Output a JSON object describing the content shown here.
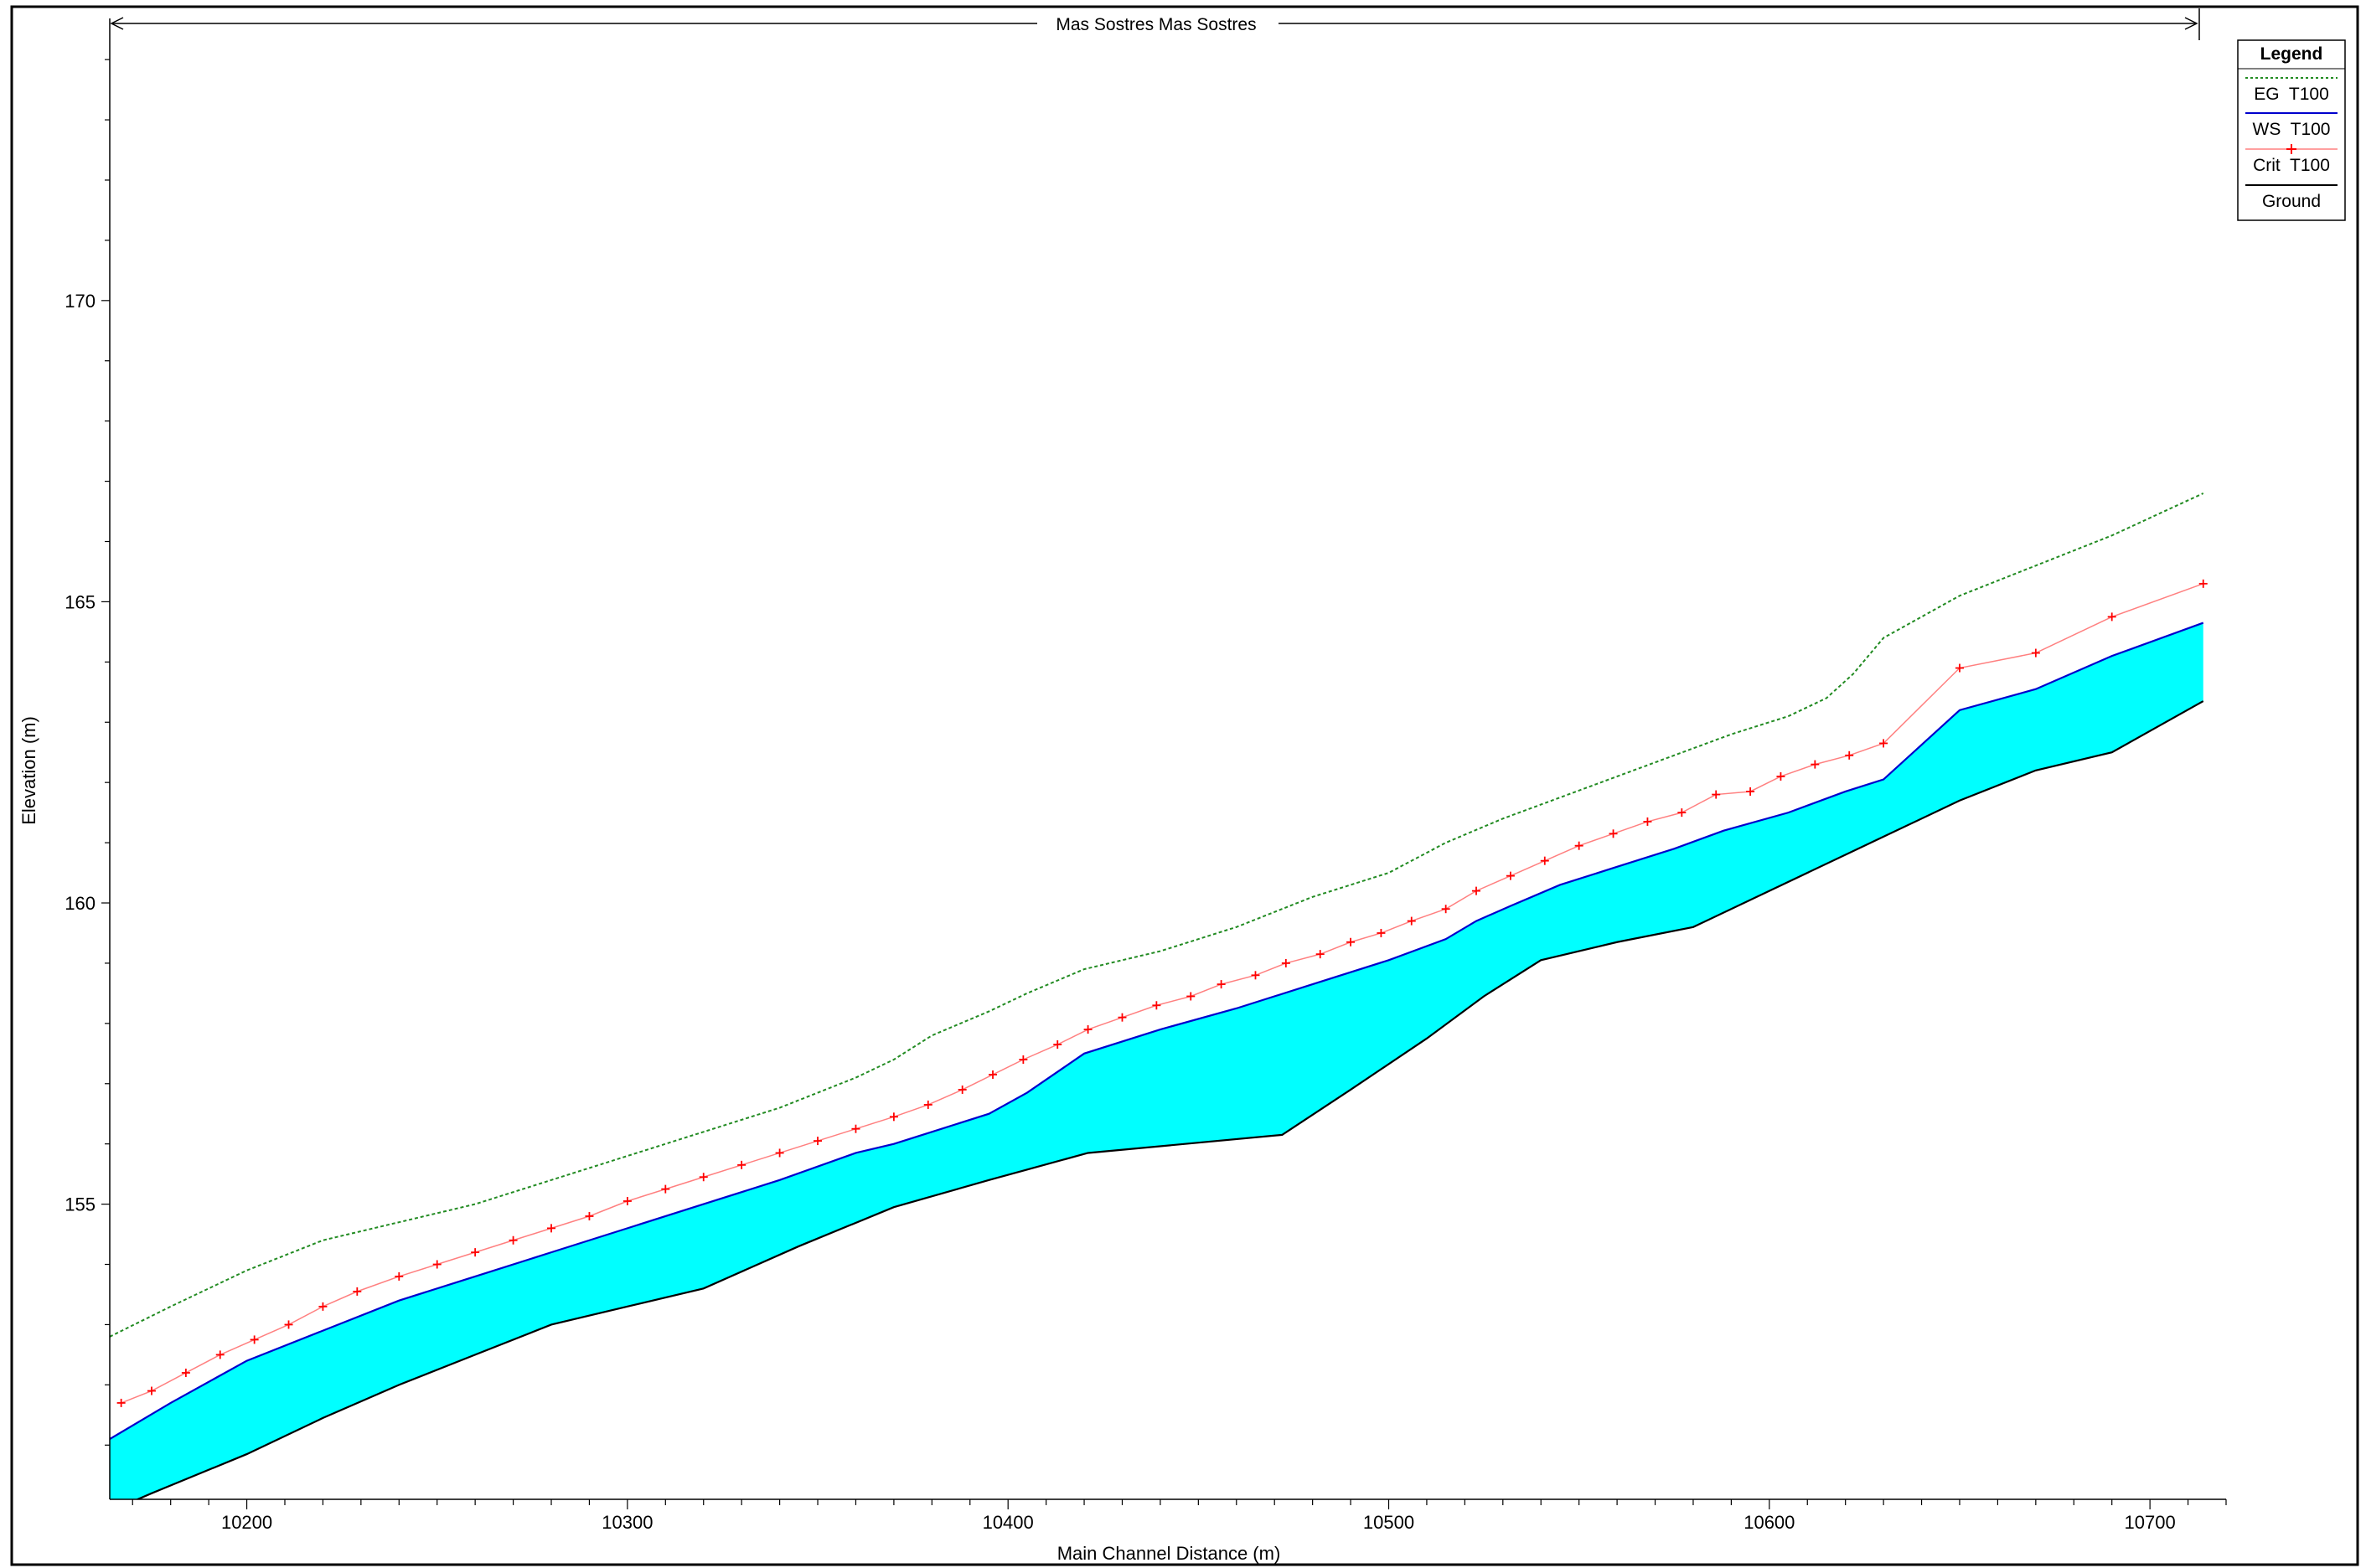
{
  "chart_data": {
    "type": "line",
    "title": "Mas Sostres Mas Sostres",
    "xlabel": "Main Channel Distance (m)",
    "ylabel": "Elevation (m)",
    "xlim": [
      10164,
      10720
    ],
    "ylim": [
      150.1,
      174.6
    ],
    "x_ticks": [
      10200,
      10300,
      10400,
      10500,
      10600,
      10700
    ],
    "y_ticks": [
      155,
      160,
      165,
      170
    ],
    "grid": false,
    "legend_position": "top-right",
    "legend_title": "Legend",
    "colors": {
      "eg": "#228b22",
      "ws": "#0000cd",
      "crit": "#ff0000",
      "ground": "#000000",
      "water_fill": "#00ffff"
    },
    "series": [
      {
        "name": "EG  T100",
        "key": "eg",
        "x": [
          10164,
          10180,
          10200,
          10220,
          10240,
          10260,
          10280,
          10300,
          10320,
          10340,
          10360,
          10370,
          10380,
          10395,
          10405,
          10420,
          10440,
          10460,
          10480,
          10500,
          10515,
          10530,
          10545,
          10560,
          10575,
          10590,
          10605,
          10615,
          10622,
          10630,
          10650,
          10670,
          10690,
          10714
        ],
        "y": [
          152.8,
          153.3,
          153.9,
          154.4,
          154.7,
          155.0,
          155.4,
          155.8,
          156.2,
          156.6,
          157.1,
          157.4,
          157.8,
          158.2,
          158.5,
          158.9,
          159.2,
          159.6,
          160.1,
          160.5,
          161.0,
          161.4,
          161.75,
          162.1,
          162.45,
          162.8,
          163.1,
          163.4,
          163.8,
          164.4,
          165.1,
          165.6,
          166.1,
          166.8
        ]
      },
      {
        "name": "WS  T100",
        "key": "ws",
        "x": [
          10164,
          10180,
          10200,
          10220,
          10240,
          10260,
          10280,
          10300,
          10320,
          10340,
          10360,
          10370,
          10380,
          10395,
          10405,
          10420,
          10440,
          10460,
          10480,
          10500,
          10515,
          10523,
          10532,
          10545,
          10560,
          10575,
          10588,
          10605,
          10620,
          10630,
          10650,
          10670,
          10690,
          10714
        ],
        "y": [
          151.1,
          151.7,
          152.4,
          152.9,
          153.4,
          153.8,
          154.2,
          154.6,
          155.0,
          155.4,
          155.85,
          156.0,
          156.2,
          156.5,
          156.85,
          157.5,
          157.9,
          158.25,
          158.65,
          159.05,
          159.4,
          159.7,
          159.95,
          160.3,
          160.6,
          160.9,
          161.2,
          161.5,
          161.85,
          162.05,
          163.2,
          163.55,
          164.1,
          164.65
        ]
      },
      {
        "name": "Crit  T100",
        "key": "crit",
        "x": [
          10167,
          10175,
          10184,
          10193,
          10202,
          10211,
          10220,
          10229,
          10240,
          10250,
          10260,
          10270,
          10280,
          10290,
          10300,
          10310,
          10320,
          10330,
          10340,
          10350,
          10360,
          10370,
          10379,
          10388,
          10396,
          10404,
          10413,
          10421,
          10430,
          10439,
          10448,
          10456,
          10465,
          10473,
          10482,
          10490,
          10498,
          10506,
          10515,
          10523,
          10532,
          10541,
          10550,
          10559,
          10568,
          10577,
          10586,
          10595,
          10603,
          10612,
          10621,
          10630,
          10650,
          10670,
          10690,
          10714
        ],
        "y": [
          151.7,
          151.9,
          152.2,
          152.5,
          152.75,
          153.0,
          153.3,
          153.55,
          153.8,
          154.0,
          154.2,
          154.4,
          154.6,
          154.8,
          155.05,
          155.25,
          155.45,
          155.65,
          155.85,
          156.05,
          156.25,
          156.45,
          156.65,
          156.9,
          157.15,
          157.4,
          157.65,
          157.9,
          158.1,
          158.3,
          158.45,
          158.65,
          158.8,
          159.0,
          159.15,
          159.35,
          159.5,
          159.7,
          159.9,
          160.2,
          160.45,
          160.7,
          160.95,
          161.15,
          161.35,
          161.5,
          161.8,
          161.85,
          162.1,
          162.3,
          162.45,
          162.65,
          163.9,
          164.15,
          164.75,
          165.3
        ]
      },
      {
        "name": "Ground",
        "key": "ground",
        "x": [
          10164,
          10175,
          10200,
          10220,
          10240,
          10260,
          10280,
          10300,
          10320,
          10345,
          10370,
          10395,
          10421,
          10472,
          10490,
          10510,
          10525,
          10540,
          10560,
          10580,
          10600,
          10630,
          10650,
          10670,
          10690,
          10714
        ],
        "y": [
          149.9,
          150.2,
          150.85,
          151.45,
          152.0,
          152.5,
          153.0,
          153.3,
          153.6,
          154.3,
          154.95,
          155.4,
          155.85,
          156.15,
          156.9,
          157.75,
          158.45,
          159.05,
          159.35,
          159.6,
          160.2,
          161.1,
          161.7,
          162.2,
          162.5,
          163.35
        ]
      }
    ]
  }
}
